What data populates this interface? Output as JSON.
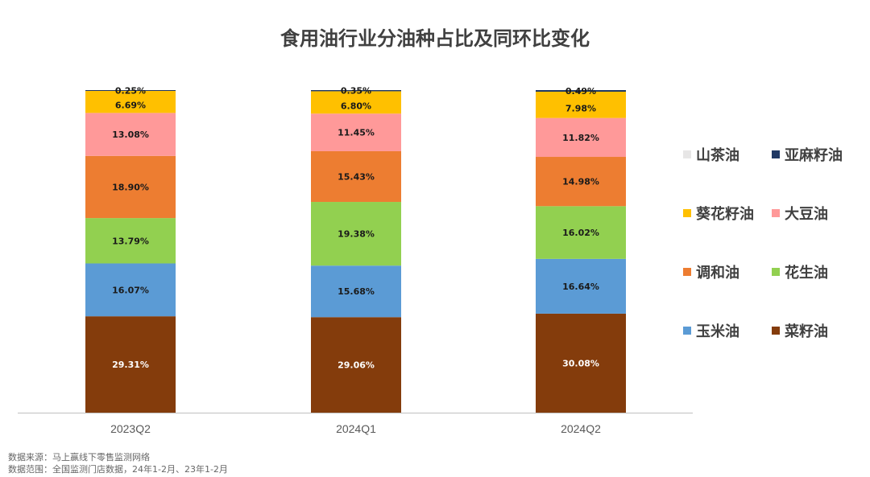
{
  "chart_data": {
    "type": "bar",
    "stacked": true,
    "title": "食用油行业分油种占比及同环比变化",
    "categories": [
      "2023Q2",
      "2024Q1",
      "2024Q2"
    ],
    "series": [
      {
        "name": "菜籽油",
        "color": "#843C0C",
        "label_color": "#ffffff",
        "values": [
          29.31,
          29.06,
          30.08
        ],
        "labels": [
          "29.31%",
          "29.06%",
          "30.08%"
        ]
      },
      {
        "name": "玉米油",
        "color": "#5B9BD5",
        "label_color": "#1a1a1a",
        "values": [
          16.07,
          15.68,
          16.64
        ],
        "labels": [
          "16.07%",
          "15.68%",
          "16.64%"
        ]
      },
      {
        "name": "花生油",
        "color": "#92D050",
        "label_color": "#1a1a1a",
        "values": [
          13.79,
          19.38,
          16.02
        ],
        "labels": [
          "13.79%",
          "19.38%",
          "16.02%"
        ]
      },
      {
        "name": "调和油",
        "color": "#ED7D31",
        "label_color": "#1a1a1a",
        "values": [
          18.9,
          15.43,
          14.98
        ],
        "labels": [
          "18.90%",
          "15.43%",
          "14.98%"
        ]
      },
      {
        "name": "大豆油",
        "color": "#FF9999",
        "label_color": "#1a1a1a",
        "values": [
          13.08,
          11.45,
          11.82
        ],
        "labels": [
          "13.08%",
          "11.45%",
          "11.82%"
        ]
      },
      {
        "name": "葵花籽油",
        "color": "#FFC000",
        "label_color": "#1a1a1a",
        "values": [
          6.69,
          6.8,
          7.98
        ],
        "labels": [
          "6.69%",
          "6.80%",
          "7.98%"
        ]
      },
      {
        "name": "亚麻籽油",
        "color": "#1F3864",
        "label_color": "#1a1a1a",
        "values": [
          0.25,
          0.35,
          0.49
        ],
        "labels": [
          "0.25%",
          "0.35%",
          "0.49%"
        ]
      },
      {
        "name": "山茶油",
        "color": "#E7E6E6",
        "label_color": "#1a1a1a",
        "values": [
          0,
          0,
          0
        ],
        "labels": [
          "",
          "",
          ""
        ]
      }
    ],
    "legend_order": [
      "山茶油",
      "亚麻籽油",
      "葵花籽油",
      "大豆油",
      "调和油",
      "花生油",
      "玉米油",
      "菜籽油"
    ],
    "legend_position": "right",
    "grid": false
  },
  "footer": {
    "source": "数据来源：马上赢线下零售监测网络",
    "scope": "数据范围：全国监测门店数据，24年1-2月、23年1-2月"
  }
}
